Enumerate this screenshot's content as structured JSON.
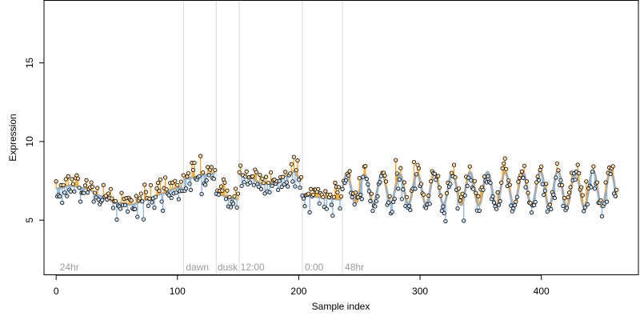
{
  "chart_data": {
    "type": "scatter",
    "title": "",
    "xlabel": "Sample index",
    "ylabel": "Expression",
    "xlim": [
      -10,
      480
    ],
    "ylim": [
      1.5,
      19.0
    ],
    "x_ticks": [
      0,
      100,
      200,
      300,
      400
    ],
    "y_ticks": [
      5,
      10,
      15
    ],
    "grid": false,
    "legend": "none",
    "colors": {
      "points_fill": "#ffd9a0",
      "points_fill_alt": "#c8ddf0",
      "point_stroke": "#000000",
      "fit_line": "#a8a8a8",
      "residual_up": "#f0a830",
      "residual_down": "#8fb8e0",
      "divider": "#d9d9d9",
      "annotation": "#9a9a9a"
    },
    "dividers": [
      105,
      132,
      151,
      203,
      236
    ],
    "annotations": [
      {
        "x": 3,
        "text": "24hr"
      },
      {
        "x": 107,
        "text": "dawn"
      },
      {
        "x": 133,
        "text": "dusk"
      },
      {
        "x": 152,
        "text": "12:00"
      },
      {
        "x": 205,
        "text": "0:00"
      },
      {
        "x": 238,
        "text": "48hr"
      }
    ],
    "segments": [
      {
        "name": "24hr",
        "x_start": 0,
        "x_end": 104,
        "shape": "smooth",
        "knots": [
          [
            0,
            7.0
          ],
          [
            12,
            7.2
          ],
          [
            25,
            7.0
          ],
          [
            38,
            6.5
          ],
          [
            50,
            6.1
          ],
          [
            62,
            6.0
          ],
          [
            75,
            6.3
          ],
          [
            88,
            6.7
          ],
          [
            98,
            7.0
          ],
          [
            104,
            7.1
          ]
        ]
      },
      {
        "name": "dawn",
        "x_start": 105,
        "x_end": 131,
        "shape": "linear",
        "y_start": 7.6,
        "y_end": 8.0
      },
      {
        "name": "dusk",
        "x_start": 132,
        "x_end": 150,
        "shape": "linear",
        "y_start": 6.7,
        "y_end": 6.3
      },
      {
        "name": "12:00",
        "x_start": 151,
        "x_end": 202,
        "shape": "smooth",
        "knots": [
          [
            151,
            7.9
          ],
          [
            160,
            7.7
          ],
          [
            170,
            7.3
          ],
          [
            180,
            7.4
          ],
          [
            190,
            7.8
          ],
          [
            196,
            8.1
          ],
          [
            202,
            7.5
          ]
        ]
      },
      {
        "name": "0:00",
        "x_start": 203,
        "x_end": 235,
        "shape": "linear",
        "y_start": 6.6,
        "y_end": 6.3
      },
      {
        "name": "48hr",
        "x_start": 236,
        "x_end": 462,
        "shape": "oscillation",
        "baseline": 7.0,
        "amplitude_start": 0.9,
        "amplitude_end": 1.2,
        "period": 14.5
      }
    ],
    "noise_sd": 0.5,
    "n_points": 463
  }
}
